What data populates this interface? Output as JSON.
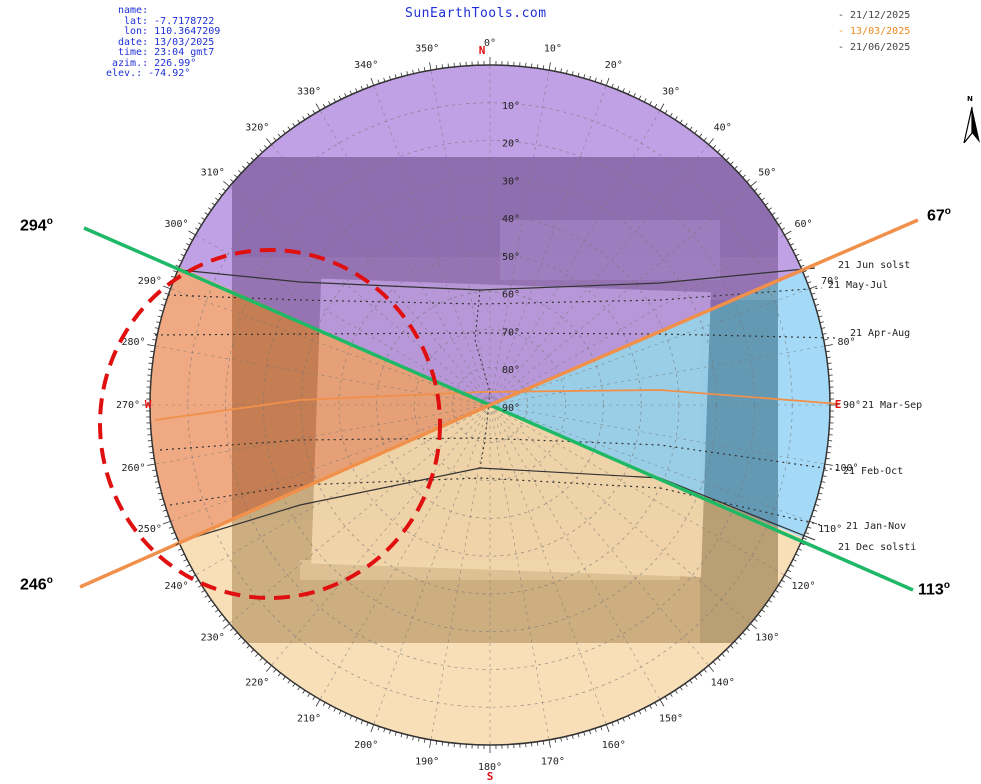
{
  "site": "SunEarthTools.com",
  "location_info": {
    "name": "name:",
    "lat": "lat: -7.7178722",
    "lon": "lon: 110.3647209",
    "date": "date: 13/03/2025",
    "time": "time: 23:04 gmt7",
    "azim": "azim.: 226.99°",
    "elev": "elev.: -74.92°"
  },
  "legend": [
    {
      "label": "- 21/12/2025",
      "color": "#555555"
    },
    {
      "label": "- 13/03/2025",
      "color": "#f08a20"
    },
    {
      "label": "- 21/06/2025",
      "color": "#555555"
    }
  ],
  "compass": {
    "north": "N",
    "south": "S",
    "east": "E",
    "west": "W"
  },
  "azimuth_ticks": [
    "0°",
    "10°",
    "20°",
    "30°",
    "40°",
    "50°",
    "60°",
    "70°",
    "80°",
    "90°",
    "100°",
    "110°",
    "120°",
    "130°",
    "140°",
    "150°",
    "160°",
    "170°",
    "180°",
    "190°",
    "200°",
    "210°",
    "220°",
    "230°",
    "240°",
    "250°",
    "260°",
    "270°",
    "280°",
    "290°",
    "300°",
    "310°",
    "320°",
    "330°",
    "340°",
    "350°"
  ],
  "elevation_labels": [
    "10°",
    "20°",
    "30°",
    "40°",
    "50°",
    "60°",
    "70°",
    "80°",
    "90°"
  ],
  "sun_path_labels": {
    "jun": "21 Jun  solst",
    "may_jul": "21 May-Jul",
    "apr_aug": "21 Apr-Aug",
    "mar_sep": "21 Mar-Sep",
    "feb_oct": "21 Feb-Oct",
    "jan_nov": "21 Jan-Nov",
    "dec": "21 Dec  solsti"
  },
  "annotations": {
    "az_294": "294",
    "az_67": "67",
    "az_246": "246",
    "az_113": "113",
    "degree_sign": "o"
  },
  "colors": {
    "purple_sector": "#a274d8",
    "blue_sector": "#6cc4f2",
    "orange_sector": "#e8824a",
    "peach_sector": "#f5cc8c",
    "green_line": "#1fb866",
    "orange_line": "#f0904a",
    "red_circle": "#e01010",
    "info_text": "#1f2fd6"
  }
}
